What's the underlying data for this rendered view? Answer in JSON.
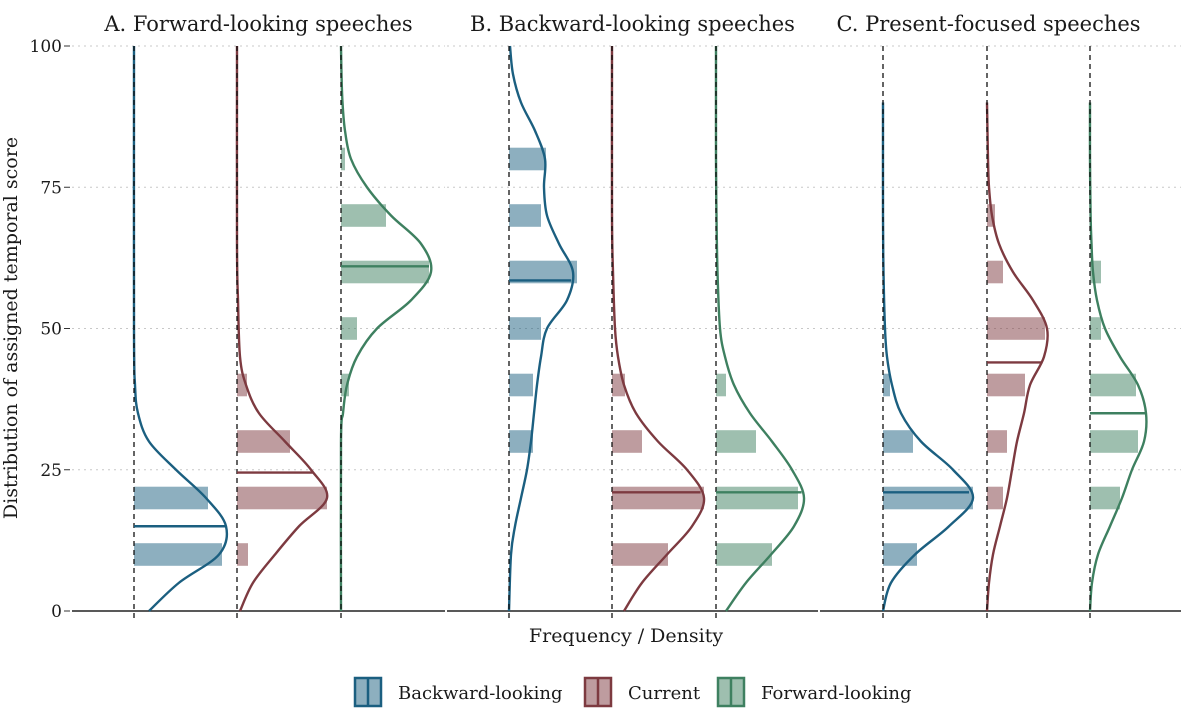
{
  "chart_data": {
    "type": "histogram-density-ridge",
    "ylabel": "Distribution of assigned temporal score",
    "xlabel": "Frequency / Density",
    "ylim": [
      0,
      100
    ],
    "y_ticks": [
      0,
      25,
      50,
      75,
      100
    ],
    "grid": "horizontal dotted",
    "legend_position": "bottom",
    "colors": {
      "Backward-looking": "#1b5f80",
      "Current": "#7d3a40",
      "Forward-looking": "#3e8060"
    },
    "categories": [
      "Backward-looking",
      "Current",
      "Forward-looking"
    ],
    "panels": [
      {
        "title": "A. Forward-looking speeches",
        "groups": [
          {
            "name": "Backward-looking",
            "median": 15,
            "bins": [
              {
                "y0": 8,
                "y1": 12,
                "freq": 0.88
              },
              {
                "y0": 18,
                "y1": 22,
                "freq": 0.74
              }
            ],
            "density": [
              [
                0,
                0.15
              ],
              [
                5,
                0.45
              ],
              [
                10,
                0.85
              ],
              [
                15,
                0.92
              ],
              [
                20,
                0.72
              ],
              [
                25,
                0.42
              ],
              [
                30,
                0.15
              ],
              [
                35,
                0.04
              ],
              [
                40,
                0.01
              ],
              [
                50,
                0
              ],
              [
                100,
                0
              ]
            ]
          },
          {
            "name": "Current",
            "median": 24.5,
            "bins": [
              {
                "y0": 8,
                "y1": 12,
                "freq": 0.11
              },
              {
                "y0": 18,
                "y1": 22,
                "freq": 0.9
              },
              {
                "y0": 28,
                "y1": 32,
                "freq": 0.53
              },
              {
                "y0": 38,
                "y1": 42,
                "freq": 0.1
              }
            ],
            "density": [
              [
                0,
                0.03
              ],
              [
                5,
                0.16
              ],
              [
                10,
                0.38
              ],
              [
                15,
                0.62
              ],
              [
                20,
                0.9
              ],
              [
                25,
                0.74
              ],
              [
                30,
                0.48
              ],
              [
                35,
                0.22
              ],
              [
                40,
                0.09
              ],
              [
                45,
                0.03
              ],
              [
                55,
                0.01
              ],
              [
                65,
                0
              ],
              [
                100,
                0
              ]
            ]
          },
          {
            "name": "Forward-looking",
            "median": 61,
            "bins": [
              {
                "y0": 38,
                "y1": 42,
                "freq": 0.08
              },
              {
                "y0": 48,
                "y1": 52,
                "freq": 0.16
              },
              {
                "y0": 58,
                "y1": 62,
                "freq": 0.88
              },
              {
                "y0": 68,
                "y1": 72,
                "freq": 0.45
              },
              {
                "y0": 78,
                "y1": 82,
                "freq": 0.04
              }
            ],
            "density": [
              [
                0,
                0
              ],
              [
                30,
                0
              ],
              [
                35,
                0.02
              ],
              [
                40,
                0.06
              ],
              [
                45,
                0.16
              ],
              [
                50,
                0.36
              ],
              [
                55,
                0.7
              ],
              [
                60,
                0.9
              ],
              [
                65,
                0.8
              ],
              [
                70,
                0.5
              ],
              [
                75,
                0.26
              ],
              [
                80,
                0.1
              ],
              [
                85,
                0.04
              ],
              [
                90,
                0.015
              ],
              [
                95,
                0.005
              ],
              [
                100,
                0
              ]
            ]
          }
        ]
      },
      {
        "title": "B. Backward-looking speeches",
        "groups": [
          {
            "name": "Backward-looking",
            "median": 58.5,
            "bins": [
              {
                "y0": 28,
                "y1": 32,
                "freq": 0.24
              },
              {
                "y0": 38,
                "y1": 42,
                "freq": 0.24
              },
              {
                "y0": 48,
                "y1": 52,
                "freq": 0.32
              },
              {
                "y0": 58,
                "y1": 62,
                "freq": 0.68
              },
              {
                "y0": 68,
                "y1": 72,
                "freq": 0.32
              },
              {
                "y0": 78,
                "y1": 82,
                "freq": 0.37
              }
            ],
            "density": [
              [
                0,
                0
              ],
              [
                10,
                0.02
              ],
              [
                15,
                0.06
              ],
              [
                20,
                0.12
              ],
              [
                25,
                0.18
              ],
              [
                30,
                0.22
              ],
              [
                35,
                0.25
              ],
              [
                40,
                0.28
              ],
              [
                45,
                0.32
              ],
              [
                50,
                0.38
              ],
              [
                55,
                0.58
              ],
              [
                60,
                0.64
              ],
              [
                65,
                0.5
              ],
              [
                70,
                0.38
              ],
              [
                75,
                0.35
              ],
              [
                80,
                0.36
              ],
              [
                85,
                0.26
              ],
              [
                90,
                0.12
              ],
              [
                95,
                0.04
              ],
              [
                100,
                0.01
              ]
            ]
          },
          {
            "name": "Current",
            "median": 21,
            "bins": [
              {
                "y0": 8,
                "y1": 12,
                "freq": 0.56
              },
              {
                "y0": 18,
                "y1": 22,
                "freq": 0.92
              },
              {
                "y0": 28,
                "y1": 32,
                "freq": 0.3
              },
              {
                "y0": 38,
                "y1": 42,
                "freq": 0.13
              }
            ],
            "density": [
              [
                0,
                0.12
              ],
              [
                5,
                0.3
              ],
              [
                10,
                0.55
              ],
              [
                15,
                0.8
              ],
              [
                20,
                0.92
              ],
              [
                25,
                0.75
              ],
              [
                30,
                0.46
              ],
              [
                35,
                0.24
              ],
              [
                40,
                0.12
              ],
              [
                45,
                0.06
              ],
              [
                50,
                0.03
              ],
              [
                60,
                0.01
              ],
              [
                70,
                0
              ],
              [
                100,
                0
              ]
            ]
          },
          {
            "name": "Forward-looking",
            "median": 21,
            "bins": [
              {
                "y0": 8,
                "y1": 12,
                "freq": 0.56
              },
              {
                "y0": 18,
                "y1": 22,
                "freq": 0.82
              },
              {
                "y0": 28,
                "y1": 32,
                "freq": 0.4
              },
              {
                "y0": 38,
                "y1": 42,
                "freq": 0.1
              }
            ],
            "density": [
              [
                0,
                0.1
              ],
              [
                5,
                0.3
              ],
              [
                10,
                0.55
              ],
              [
                15,
                0.78
              ],
              [
                20,
                0.88
              ],
              [
                25,
                0.76
              ],
              [
                30,
                0.56
              ],
              [
                35,
                0.34
              ],
              [
                40,
                0.18
              ],
              [
                45,
                0.09
              ],
              [
                50,
                0.04
              ],
              [
                60,
                0.015
              ],
              [
                70,
                0.005
              ],
              [
                80,
                0
              ],
              [
                100,
                0
              ]
            ]
          }
        ]
      },
      {
        "title": "C. Present-focused speeches",
        "groups": [
          {
            "name": "Backward-looking",
            "median": 21,
            "bins": [
              {
                "y0": 8,
                "y1": 12,
                "freq": 0.34
              },
              {
                "y0": 18,
                "y1": 22,
                "freq": 0.9
              },
              {
                "y0": 28,
                "y1": 32,
                "freq": 0.3
              },
              {
                "y0": 38,
                "y1": 42,
                "freq": 0.07
              }
            ],
            "density": [
              [
                0,
                0
              ],
              [
                5,
                0.08
              ],
              [
                10,
                0.32
              ],
              [
                15,
                0.66
              ],
              [
                20,
                0.9
              ],
              [
                25,
                0.7
              ],
              [
                30,
                0.38
              ],
              [
                35,
                0.18
              ],
              [
                40,
                0.09
              ],
              [
                45,
                0.04
              ],
              [
                50,
                0.02
              ],
              [
                60,
                0.005
              ],
              [
                70,
                0
              ],
              [
                90,
                0
              ]
            ]
          },
          {
            "name": "Current",
            "median": 44,
            "bins": [
              {
                "y0": 18,
                "y1": 22,
                "freq": 0.16
              },
              {
                "y0": 28,
                "y1": 32,
                "freq": 0.2
              },
              {
                "y0": 38,
                "y1": 42,
                "freq": 0.38
              },
              {
                "y0": 48,
                "y1": 52,
                "freq": 0.58
              },
              {
                "y0": 58,
                "y1": 62,
                "freq": 0.16
              },
              {
                "y0": 68,
                "y1": 72,
                "freq": 0.08
              }
            ],
            "density": [
              [
                0,
                0
              ],
              [
                5,
                0.02
              ],
              [
                10,
                0.06
              ],
              [
                15,
                0.13
              ],
              [
                20,
                0.2
              ],
              [
                25,
                0.25
              ],
              [
                30,
                0.3
              ],
              [
                35,
                0.37
              ],
              [
                40,
                0.43
              ],
              [
                45,
                0.57
              ],
              [
                50,
                0.6
              ],
              [
                55,
                0.46
              ],
              [
                60,
                0.26
              ],
              [
                65,
                0.12
              ],
              [
                70,
                0.05
              ],
              [
                75,
                0.02
              ],
              [
                80,
                0.01
              ],
              [
                90,
                0
              ]
            ]
          },
          {
            "name": "Forward-looking",
            "median": 35,
            "bins": [
              {
                "y0": 18,
                "y1": 22,
                "freq": 0.3
              },
              {
                "y0": 28,
                "y1": 32,
                "freq": 0.48
              },
              {
                "y0": 38,
                "y1": 42,
                "freq": 0.46
              },
              {
                "y0": 48,
                "y1": 52,
                "freq": 0.11
              },
              {
                "y0": 58,
                "y1": 62,
                "freq": 0.11
              }
            ],
            "density": [
              [
                0,
                0
              ],
              [
                5,
                0.02
              ],
              [
                10,
                0.08
              ],
              [
                15,
                0.2
              ],
              [
                20,
                0.32
              ],
              [
                25,
                0.42
              ],
              [
                30,
                0.54
              ],
              [
                35,
                0.56
              ],
              [
                40,
                0.48
              ],
              [
                45,
                0.3
              ],
              [
                50,
                0.15
              ],
              [
                55,
                0.07
              ],
              [
                60,
                0.03
              ],
              [
                65,
                0.015
              ],
              [
                70,
                0.006
              ],
              [
                80,
                0
              ],
              [
                90,
                0
              ]
            ]
          }
        ]
      }
    ]
  }
}
